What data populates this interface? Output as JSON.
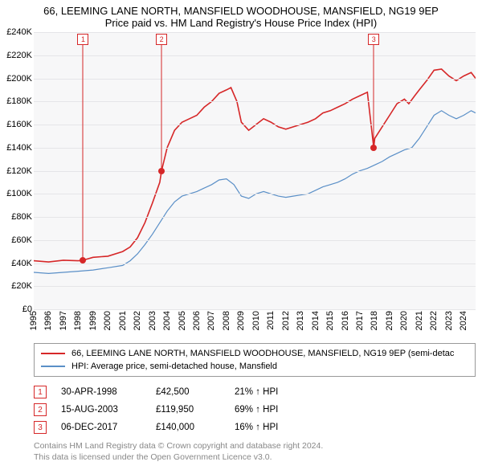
{
  "title": {
    "line1": "66, LEEMING LANE NORTH, MANSFIELD WOODHOUSE, MANSFIELD, NG19 9EP",
    "line2": "Price paid vs. HM Land Registry's House Price Index (HPI)"
  },
  "chart": {
    "type": "line",
    "background_color": "#f7f7f8",
    "grid_color": "#e5e5e8",
    "x_range": [
      1995,
      2024.8
    ],
    "y_range": [
      0,
      240000
    ],
    "y_ticks": [
      0,
      20000,
      40000,
      60000,
      80000,
      100000,
      120000,
      140000,
      160000,
      180000,
      200000,
      220000,
      240000
    ],
    "y_tick_labels": [
      "£0",
      "£20K",
      "£40K",
      "£60K",
      "£80K",
      "£100K",
      "£120K",
      "£140K",
      "£160K",
      "£180K",
      "£200K",
      "£220K",
      "£240K"
    ],
    "x_ticks": [
      1995,
      1996,
      1997,
      1998,
      1999,
      2000,
      2001,
      2002,
      2003,
      2004,
      2005,
      2006,
      2007,
      2008,
      2009,
      2010,
      2011,
      2012,
      2013,
      2014,
      2015,
      2016,
      2017,
      2018,
      2019,
      2020,
      2021,
      2022,
      2023,
      2024
    ],
    "series": [
      {
        "name": "66, LEEMING LANE NORTH, MANSFIELD WOODHOUSE, MANSFIELD, NG19 9EP (semi-detac",
        "color": "#d62728",
        "line_width": 1.6,
        "data": [
          [
            1995,
            42000
          ],
          [
            1996,
            41000
          ],
          [
            1997,
            42500
          ],
          [
            1998,
            42000
          ],
          [
            1998.33,
            42500
          ],
          [
            1999,
            45000
          ],
          [
            2000,
            46000
          ],
          [
            2001,
            50000
          ],
          [
            2001.5,
            54000
          ],
          [
            2002,
            62000
          ],
          [
            2002.5,
            75000
          ],
          [
            2003,
            92000
          ],
          [
            2003.5,
            110000
          ],
          [
            2003.62,
            119950
          ],
          [
            2004,
            140000
          ],
          [
            2004.5,
            155000
          ],
          [
            2005,
            162000
          ],
          [
            2005.5,
            165000
          ],
          [
            2006,
            168000
          ],
          [
            2006.5,
            175000
          ],
          [
            2007,
            180000
          ],
          [
            2007.5,
            187000
          ],
          [
            2008,
            190000
          ],
          [
            2008.3,
            192000
          ],
          [
            2008.7,
            180000
          ],
          [
            2009,
            162000
          ],
          [
            2009.5,
            155000
          ],
          [
            2010,
            160000
          ],
          [
            2010.5,
            165000
          ],
          [
            2011,
            162000
          ],
          [
            2011.5,
            158000
          ],
          [
            2012,
            156000
          ],
          [
            2012.5,
            158000
          ],
          [
            2013,
            160000
          ],
          [
            2013.5,
            162000
          ],
          [
            2014,
            165000
          ],
          [
            2014.5,
            170000
          ],
          [
            2015,
            172000
          ],
          [
            2015.5,
            175000
          ],
          [
            2016,
            178000
          ],
          [
            2016.5,
            182000
          ],
          [
            2017,
            185000
          ],
          [
            2017.5,
            188000
          ],
          [
            2017.93,
            140000
          ],
          [
            2018,
            148000
          ],
          [
            2018.5,
            158000
          ],
          [
            2019,
            168000
          ],
          [
            2019.5,
            178000
          ],
          [
            2020,
            182000
          ],
          [
            2020.3,
            178000
          ],
          [
            2020.7,
            185000
          ],
          [
            2021,
            190000
          ],
          [
            2021.5,
            198000
          ],
          [
            2022,
            207000
          ],
          [
            2022.5,
            208000
          ],
          [
            2023,
            202000
          ],
          [
            2023.5,
            198000
          ],
          [
            2024,
            202000
          ],
          [
            2024.5,
            205000
          ],
          [
            2024.8,
            200000
          ]
        ]
      },
      {
        "name": "HPI: Average price, semi-detached house, Mansfield",
        "color": "#5a8fc7",
        "line_width": 1.2,
        "data": [
          [
            1995,
            32000
          ],
          [
            1996,
            31000
          ],
          [
            1997,
            32000
          ],
          [
            1998,
            33000
          ],
          [
            1999,
            34000
          ],
          [
            2000,
            36000
          ],
          [
            2001,
            38000
          ],
          [
            2001.5,
            42000
          ],
          [
            2002,
            48000
          ],
          [
            2002.5,
            56000
          ],
          [
            2003,
            65000
          ],
          [
            2003.5,
            75000
          ],
          [
            2004,
            85000
          ],
          [
            2004.5,
            93000
          ],
          [
            2005,
            98000
          ],
          [
            2005.5,
            100000
          ],
          [
            2006,
            102000
          ],
          [
            2006.5,
            105000
          ],
          [
            2007,
            108000
          ],
          [
            2007.5,
            112000
          ],
          [
            2008,
            113000
          ],
          [
            2008.5,
            108000
          ],
          [
            2009,
            98000
          ],
          [
            2009.5,
            96000
          ],
          [
            2010,
            100000
          ],
          [
            2010.5,
            102000
          ],
          [
            2011,
            100000
          ],
          [
            2011.5,
            98000
          ],
          [
            2012,
            97000
          ],
          [
            2012.5,
            98000
          ],
          [
            2013,
            99000
          ],
          [
            2013.5,
            100000
          ],
          [
            2014,
            103000
          ],
          [
            2014.5,
            106000
          ],
          [
            2015,
            108000
          ],
          [
            2015.5,
            110000
          ],
          [
            2016,
            113000
          ],
          [
            2016.5,
            117000
          ],
          [
            2017,
            120000
          ],
          [
            2017.5,
            122000
          ],
          [
            2018,
            125000
          ],
          [
            2018.5,
            128000
          ],
          [
            2019,
            132000
          ],
          [
            2019.5,
            135000
          ],
          [
            2020,
            138000
          ],
          [
            2020.5,
            140000
          ],
          [
            2021,
            148000
          ],
          [
            2021.5,
            158000
          ],
          [
            2022,
            168000
          ],
          [
            2022.5,
            172000
          ],
          [
            2023,
            168000
          ],
          [
            2023.5,
            165000
          ],
          [
            2024,
            168000
          ],
          [
            2024.5,
            172000
          ],
          [
            2024.8,
            170000
          ]
        ]
      }
    ],
    "markers": [
      {
        "n": "1",
        "x": 1998.33,
        "y": 42500,
        "color": "#d62728"
      },
      {
        "n": "2",
        "x": 2003.62,
        "y": 119950,
        "color": "#d62728"
      },
      {
        "n": "3",
        "x": 2017.93,
        "y": 140000,
        "color": "#d62728"
      }
    ]
  },
  "legend": {
    "border_color": "#999999"
  },
  "sales": [
    {
      "n": "1",
      "date": "30-APR-1998",
      "price": "£42,500",
      "diff": "21% ↑ HPI",
      "color": "#d62728"
    },
    {
      "n": "2",
      "date": "15-AUG-2003",
      "price": "£119,950",
      "diff": "69% ↑ HPI",
      "color": "#d62728"
    },
    {
      "n": "3",
      "date": "06-DEC-2017",
      "price": "£140,000",
      "diff": "16% ↑ HPI",
      "color": "#d62728"
    }
  ],
  "footer": {
    "line1": "Contains HM Land Registry data © Crown copyright and database right 2024.",
    "line2": "This data is licensed under the Open Government Licence v3.0."
  }
}
